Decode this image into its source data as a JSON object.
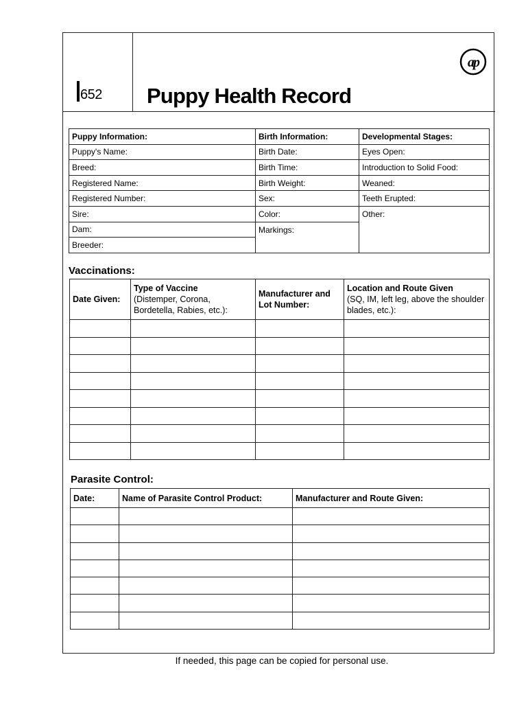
{
  "header": {
    "form_code": "652",
    "title": "Puppy Health Record",
    "logo_text": "ap"
  },
  "info": {
    "puppy": {
      "heading": "Puppy Information:",
      "fields": [
        "Puppy's Name:",
        "Breed:",
        "Registered Name:",
        "Registered Number:",
        "Sire:",
        "Dam:",
        "Breeder:"
      ]
    },
    "birth": {
      "heading": "Birth Information:",
      "fields": [
        "Birth Date:",
        "Birth Time:",
        "Birth Weight:",
        "Sex:",
        "Color:",
        "Markings:"
      ]
    },
    "development": {
      "heading": "Developmental Stages:",
      "fields": [
        "Eyes Open:",
        "Introduction to Solid Food:",
        "Weaned:",
        "Teeth Erupted:",
        "Other:"
      ]
    }
  },
  "vaccinations": {
    "title": "Vaccinations:",
    "columns": [
      {
        "bold": "Date Given:",
        "sub": ""
      },
      {
        "bold": "Type of Vaccine",
        "sub": "(Distemper, Corona, Bordetella, Rabies, etc.):"
      },
      {
        "bold": "Manufacturer and Lot Number:",
        "sub": ""
      },
      {
        "bold": "Location and Route Given",
        "sub": "(SQ, IM, left leg, above the shoulder blades, etc.):"
      }
    ]
  },
  "parasite": {
    "title": "Parasite Control:",
    "columns": [
      "Date:",
      "Name of Parasite Control Product:",
      "Manufacturer and Route Given:"
    ]
  },
  "footer": "If needed, this page can be copied for personal use."
}
